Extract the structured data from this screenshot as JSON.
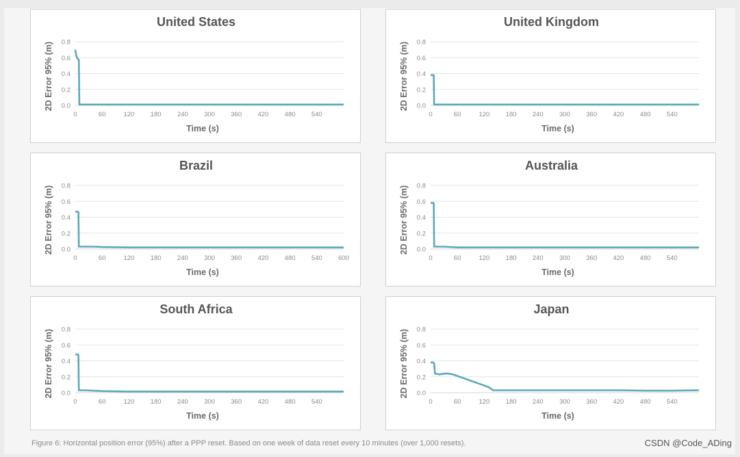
{
  "caption": "Figure 6: Horizontal position error (95%) after a PPP reset. Based on one  week of data reset every 10 minutes (over 1,000 resets).",
  "watermark": "CSDN @Code_ADing",
  "colors": {
    "series": "#5aa9b8",
    "grid": "#e3e3e3",
    "panel_border": "#cfcfcf",
    "title": "#555555"
  },
  "chart_data": [
    {
      "type": "line",
      "title": "United States",
      "xlabel": "Time (s)",
      "ylabel": "2D Error 95% (m)",
      "xlim": [
        0,
        600
      ],
      "ylim": [
        0,
        0.8
      ],
      "x_ticks": [
        "0",
        "60",
        "120",
        "180",
        "240",
        "300",
        "360",
        "420",
        "480",
        "540"
      ],
      "y_ticks": [
        "0.0",
        "0.2",
        "0.4",
        "0.6",
        "0.8"
      ],
      "grid": true,
      "series": [
        {
          "x": [
            0,
            1,
            2,
            3,
            4,
            5,
            6,
            7,
            8,
            9,
            10,
            60,
            120,
            180,
            240,
            300,
            360,
            420,
            480,
            540,
            600
          ],
          "y": [
            0.7,
            0.66,
            0.63,
            0.61,
            0.6,
            0.59,
            0.58,
            0.58,
            0.57,
            0.01,
            0.01,
            0.01,
            0.01,
            0.01,
            0.01,
            0.01,
            0.01,
            0.01,
            0.01,
            0.01,
            0.01
          ]
        }
      ]
    },
    {
      "type": "line",
      "title": "United Kingdom",
      "xlabel": "Time (s)",
      "ylabel": "2D Error 95% (m)",
      "xlim": [
        0,
        600
      ],
      "ylim": [
        0,
        0.8
      ],
      "x_ticks": [
        "0",
        "60",
        "120",
        "180",
        "240",
        "300",
        "360",
        "420",
        "480",
        "540"
      ],
      "y_ticks": [
        "0.0",
        "0.2",
        "0.4",
        "0.6",
        "0.8"
      ],
      "grid": true,
      "series": [
        {
          "x": [
            0,
            3,
            6,
            7,
            8,
            60,
            120,
            180,
            240,
            300,
            360,
            420,
            480,
            540,
            600
          ],
          "y": [
            0.38,
            0.38,
            0.38,
            0.38,
            0.01,
            0.01,
            0.01,
            0.01,
            0.01,
            0.01,
            0.01,
            0.01,
            0.01,
            0.01,
            0.01
          ]
        }
      ]
    },
    {
      "type": "line",
      "title": "Brazil",
      "xlabel": "Time (s)",
      "ylabel": "2D Error 95% (m)",
      "xlim": [
        0,
        600
      ],
      "ylim": [
        0,
        0.8
      ],
      "x_ticks": [
        "0",
        "60",
        "120",
        "180",
        "240",
        "300",
        "360",
        "420",
        "480",
        "540",
        "600"
      ],
      "y_ticks": [
        "0.0",
        "0.2",
        "0.4",
        "0.6",
        "0.8"
      ],
      "grid": true,
      "series": [
        {
          "x": [
            0,
            3,
            6,
            7,
            8,
            20,
            40,
            60,
            120,
            180,
            240,
            300,
            360,
            420,
            480,
            540,
            600
          ],
          "y": [
            0.47,
            0.47,
            0.47,
            0.46,
            0.03,
            0.03,
            0.03,
            0.025,
            0.02,
            0.02,
            0.02,
            0.02,
            0.02,
            0.02,
            0.02,
            0.02,
            0.02
          ]
        }
      ]
    },
    {
      "type": "line",
      "title": "Australia",
      "xlabel": "Time (s)",
      "ylabel": "2D Error 95% (m)",
      "xlim": [
        0,
        600
      ],
      "ylim": [
        0,
        0.8
      ],
      "x_ticks": [
        "0",
        "60",
        "120",
        "180",
        "240",
        "300",
        "360",
        "420",
        "480",
        "540"
      ],
      "y_ticks": [
        "0.0",
        "0.2",
        "0.4",
        "0.6",
        "0.8"
      ],
      "grid": true,
      "series": [
        {
          "x": [
            0,
            3,
            6,
            7,
            8,
            30,
            60,
            120,
            180,
            240,
            300,
            360,
            420,
            480,
            540,
            600
          ],
          "y": [
            0.58,
            0.58,
            0.58,
            0.57,
            0.03,
            0.03,
            0.02,
            0.02,
            0.02,
            0.02,
            0.02,
            0.02,
            0.02,
            0.02,
            0.02,
            0.02
          ]
        }
      ]
    },
    {
      "type": "line",
      "title": "South Africa",
      "xlabel": "Time (s)",
      "ylabel": "2D Error 95% (m)",
      "xlim": [
        0,
        600
      ],
      "ylim": [
        0,
        0.8
      ],
      "x_ticks": [
        "0",
        "60",
        "120",
        "180",
        "240",
        "300",
        "360",
        "420",
        "480",
        "540"
      ],
      "y_ticks": [
        "0.0",
        "0.2",
        "0.4",
        "0.6",
        "0.8"
      ],
      "grid": true,
      "series": [
        {
          "x": [
            0,
            3,
            6,
            7,
            8,
            20,
            40,
            60,
            120,
            180,
            240,
            300,
            360,
            420,
            480,
            540,
            600
          ],
          "y": [
            0.48,
            0.48,
            0.48,
            0.47,
            0.03,
            0.03,
            0.025,
            0.02,
            0.015,
            0.015,
            0.015,
            0.015,
            0.015,
            0.015,
            0.015,
            0.015,
            0.015
          ]
        }
      ]
    },
    {
      "type": "line",
      "title": "Japan",
      "xlabel": "Time (s)",
      "ylabel": "2D Error 95% (m)",
      "xlim": [
        0,
        600
      ],
      "ylim": [
        0,
        0.8
      ],
      "x_ticks": [
        "0",
        "60",
        "120",
        "180",
        "240",
        "300",
        "360",
        "420",
        "480",
        "540"
      ],
      "y_ticks": [
        "0.0",
        "0.2",
        "0.4",
        "0.6",
        "0.8"
      ],
      "grid": true,
      "series": [
        {
          "x": [
            0,
            5,
            8,
            10,
            20,
            30,
            40,
            50,
            60,
            70,
            80,
            90,
            100,
            110,
            120,
            130,
            140,
            180,
            240,
            300,
            360,
            420,
            480,
            540,
            600
          ],
          "y": [
            0.38,
            0.38,
            0.37,
            0.24,
            0.23,
            0.24,
            0.24,
            0.23,
            0.21,
            0.19,
            0.17,
            0.15,
            0.13,
            0.11,
            0.09,
            0.07,
            0.03,
            0.03,
            0.03,
            0.03,
            0.03,
            0.03,
            0.025,
            0.025,
            0.03
          ]
        }
      ]
    }
  ]
}
